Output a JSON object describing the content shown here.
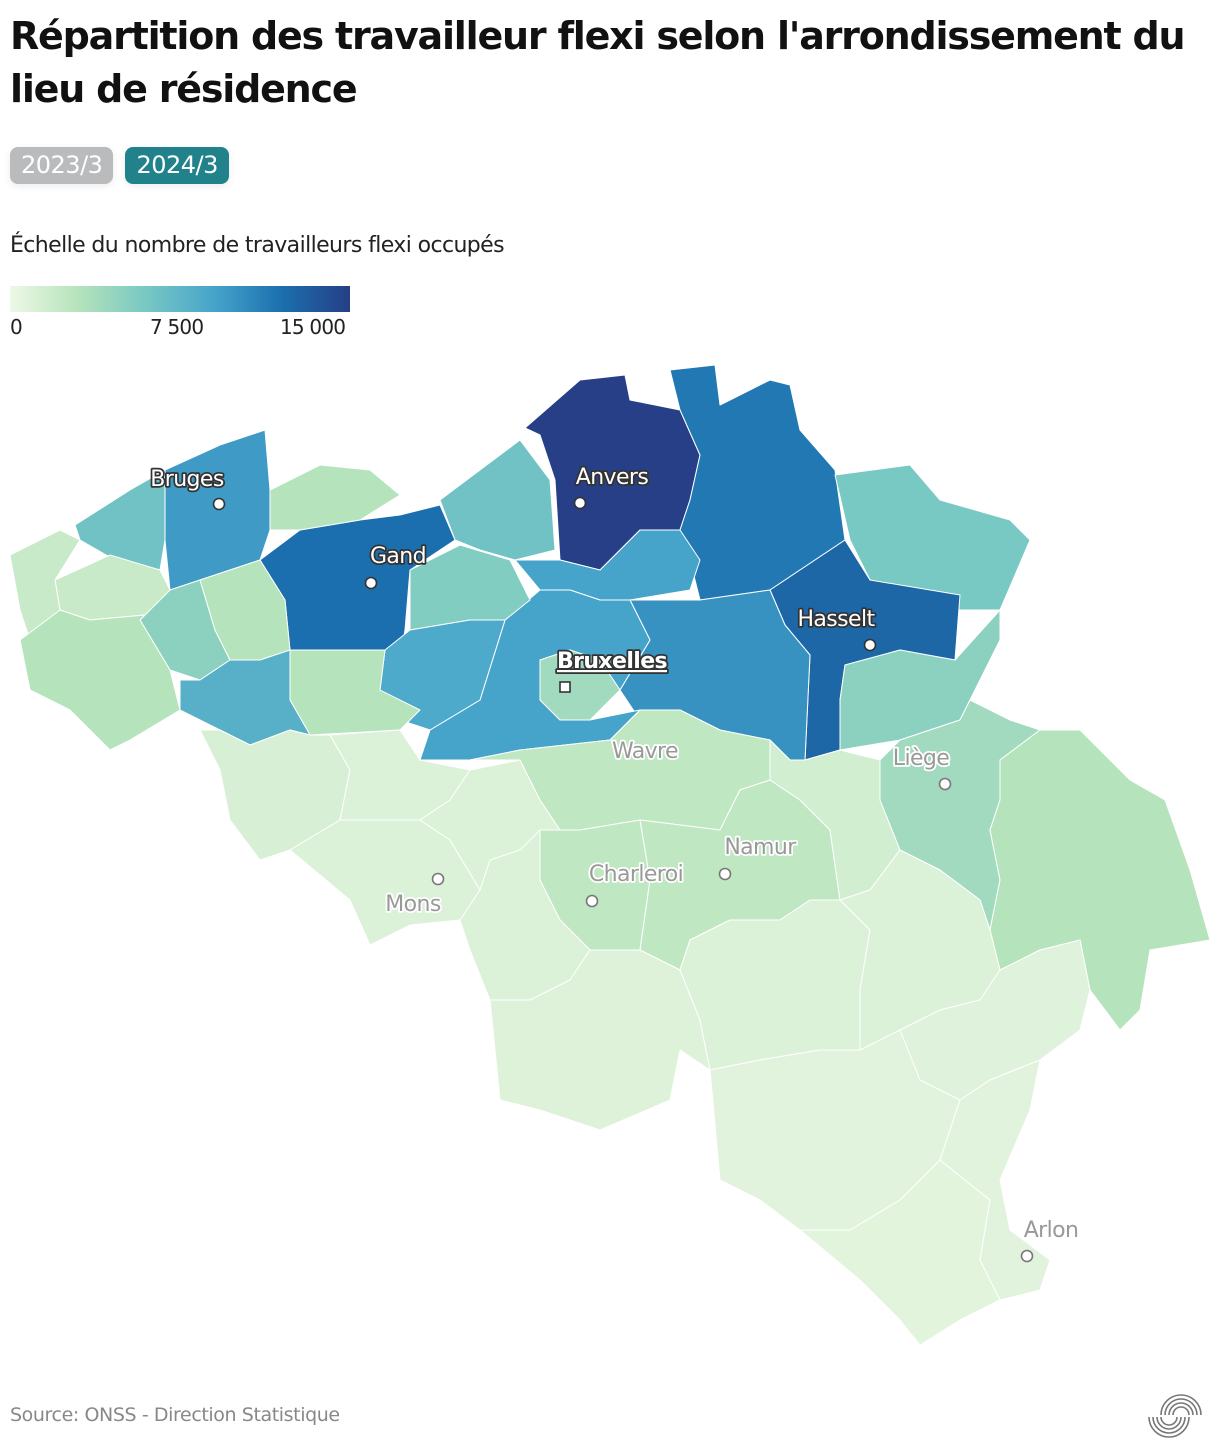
{
  "title": "Répartition des travailleur flexi selon l'arrondissement du lieu de résidence",
  "period_buttons": [
    {
      "label": "2023/3",
      "active": false
    },
    {
      "label": "2024/3",
      "active": true
    }
  ],
  "colors": {
    "active_button": "#21828c",
    "inactive_button": "#b9bbbd",
    "region_border": "#ffffff"
  },
  "legend": {
    "title": "Échelle du nombre de travailleurs flexi occupés",
    "ticks": [
      "0",
      "7 500",
      "15 000"
    ],
    "min": 0,
    "max": 15000,
    "color_stops": [
      "#eef8e6",
      "#b5e3bb",
      "#78c8c3",
      "#46a4cb",
      "#1b6fae",
      "#263f86"
    ]
  },
  "map": {
    "region_values": [
      15000,
      11500,
      6000,
      12500,
      5000,
      10000,
      9000,
      9000,
      4000,
      6500,
      5500,
      12000,
      3000,
      8500,
      3000,
      9500,
      6500,
      2000,
      2000,
      5000,
      3000,
      3000,
      8000,
      1200,
      1000,
      1000,
      1000,
      2500,
      2500,
      1000,
      2500,
      900,
      1000,
      1500,
      4000,
      3000,
      1000,
      800,
      700,
      600,
      700
    ],
    "cities": [
      {
        "name": "Bruges",
        "marker": "circle"
      },
      {
        "name": "Gand",
        "marker": "circle"
      },
      {
        "name": "Anvers",
        "marker": "circle"
      },
      {
        "name": "Hasselt",
        "marker": "circle"
      },
      {
        "name": "Bruxelles",
        "marker": "square",
        "capital": true
      },
      {
        "name": "Wavre",
        "marker": "none"
      },
      {
        "name": "Liège",
        "marker": "circle"
      },
      {
        "name": "Namur",
        "marker": "circle"
      },
      {
        "name": "Charleroi",
        "marker": "circle"
      },
      {
        "name": "Mons",
        "marker": "circle"
      },
      {
        "name": "Arlon",
        "marker": "circle"
      }
    ]
  },
  "source": "Source: ONSS - Direction Statistique",
  "logo": "onss-logo"
}
